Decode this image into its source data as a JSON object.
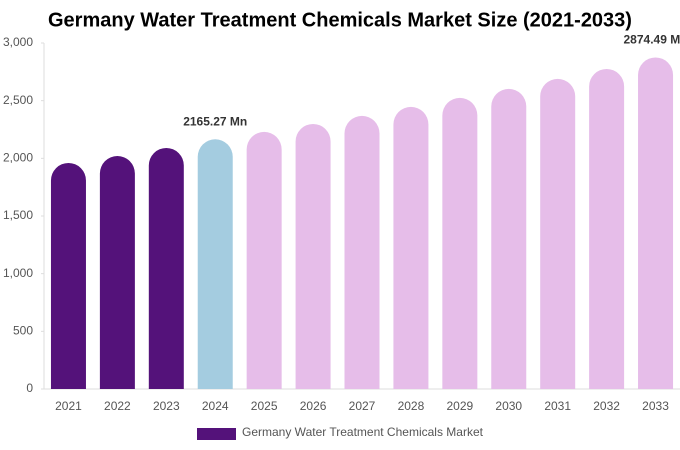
{
  "chart_data": {
    "type": "bar",
    "title": "Germany Water Treatment Chemicals Market Size (2021-2033)",
    "categories": [
      "2021",
      "2022",
      "2023",
      "2024",
      "2025",
      "2026",
      "2027",
      "2028",
      "2029",
      "2030",
      "2031",
      "2032",
      "2033"
    ],
    "series": [
      {
        "name": "Germany Water Treatment Chemicals Market",
        "color": "#54127a",
        "colors": [
          "#54127a",
          "#54127a",
          "#54127a",
          "#a4cce0",
          "#e6bde9",
          "#e6bde9",
          "#e6bde9",
          "#e6bde9",
          "#e6bde9",
          "#e6bde9",
          "#e6bde9",
          "#e6bde9",
          "#e6bde9"
        ],
        "values": [
          1960,
          2020,
          2090,
          2165.27,
          2229,
          2298,
          2368,
          2446,
          2524,
          2602,
          2689,
          2775,
          2874.49
        ],
        "value_labels": [
          null,
          null,
          null,
          "2165.27 Mn",
          null,
          null,
          null,
          null,
          null,
          null,
          null,
          null,
          "2874.49 Mn"
        ]
      }
    ],
    "ylim": [
      0,
      3000
    ],
    "yticks": [
      0,
      500,
      {
        "value": 1000,
        "label": "1,000"
      },
      {
        "value": 1500,
        "label": "1,500"
      },
      {
        "value": 2000,
        "label": "2,000"
      },
      {
        "value": 2500,
        "label": "2,500"
      },
      {
        "value": 3000,
        "label": "3,000"
      }
    ],
    "grid": false
  }
}
